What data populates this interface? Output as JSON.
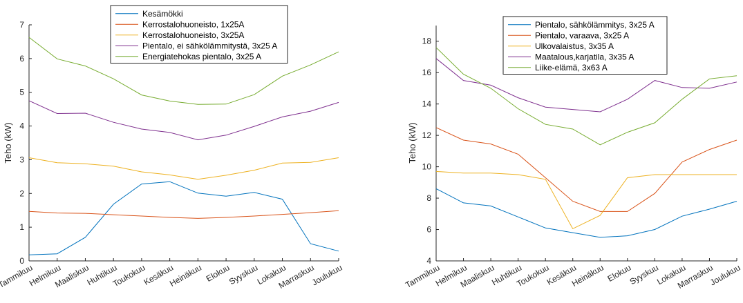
{
  "chart_data": [
    {
      "type": "line",
      "ylabel": "Teho (kW)",
      "xlabel": "",
      "title": "",
      "ylim": [
        0,
        7
      ],
      "yticks": [
        0,
        1,
        2,
        3,
        4,
        5,
        6,
        7
      ],
      "legend_position": "top-center",
      "categories": [
        "Tammikuu",
        "Helmikuu",
        "Maaliskuu",
        "Huhtikuu",
        "Toukokuu",
        "Kesäkuu",
        "Heinäkuu",
        "Elokuu",
        "Syyskuu",
        "Lokakuu",
        "Marraskuu",
        "Joulukuu"
      ],
      "series": [
        {
          "name": "Kesämökki",
          "color": "#0072BD",
          "values": [
            0.18,
            0.21,
            0.7,
            1.68,
            2.28,
            2.35,
            2.01,
            1.92,
            2.03,
            1.83,
            0.51,
            0.29
          ]
        },
        {
          "name": "Kerrostalohuoneisto, 1x25A",
          "color": "#D95319",
          "values": [
            1.47,
            1.42,
            1.41,
            1.37,
            1.33,
            1.29,
            1.26,
            1.29,
            1.33,
            1.38,
            1.43,
            1.49
          ]
        },
        {
          "name": "Kerrostalohuoneisto, 3x25A",
          "color": "#EDB120",
          "values": [
            3.06,
            2.91,
            2.88,
            2.81,
            2.64,
            2.55,
            2.42,
            2.54,
            2.69,
            2.9,
            2.92,
            3.06
          ]
        },
        {
          "name": "Pientalo, ei sähkölämmitystä, 3x25 A",
          "color": "#7E2F8E",
          "values": [
            4.75,
            4.37,
            4.38,
            4.11,
            3.91,
            3.81,
            3.59,
            3.73,
            3.99,
            4.27,
            4.44,
            4.7
          ]
        },
        {
          "name": "Energiatehokas pientalo, 3x25 A",
          "color": "#77AC30",
          "values": [
            6.63,
            5.99,
            5.78,
            5.4,
            4.92,
            4.74,
            4.64,
            4.65,
            4.93,
            5.48,
            5.81,
            6.2
          ]
        }
      ]
    },
    {
      "type": "line",
      "ylabel": "Teho (kW)",
      "xlabel": "",
      "title": "",
      "ylim": [
        4,
        19
      ],
      "yticks": [
        4,
        6,
        8,
        10,
        12,
        14,
        16,
        18
      ],
      "legend_position": "top-center",
      "categories": [
        "Tammikuu",
        "Helmikuu",
        "Maaliskuu",
        "Huhtikuu",
        "Toukokuu",
        "Kesäkuu",
        "Heinäkuu",
        "Elokuu",
        "Syyskuu",
        "Lokakuu",
        "Marraskuu",
        "Joulukuu"
      ],
      "series": [
        {
          "name": "Pientalo, sähkölämmitys, 3x25 A",
          "color": "#0072BD",
          "values": [
            8.6,
            7.7,
            7.5,
            6.8,
            6.1,
            5.8,
            5.5,
            5.6,
            6.0,
            6.85,
            7.3,
            7.8
          ]
        },
        {
          "name": "Pientalo, varaava, 3x25 A",
          "color": "#D95319",
          "values": [
            12.5,
            11.7,
            11.45,
            10.8,
            9.3,
            7.8,
            7.15,
            7.15,
            8.3,
            10.3,
            11.1,
            11.7
          ]
        },
        {
          "name": "Ulkovalaistus, 3x35 A",
          "color": "#EDB120",
          "values": [
            9.7,
            9.6,
            9.6,
            9.5,
            9.2,
            6.05,
            6.9,
            9.3,
            9.5,
            9.5,
            9.5,
            9.5
          ]
        },
        {
          "name": "Maatalous,karjatila, 3x35 A",
          "color": "#7E2F8E",
          "values": [
            16.9,
            15.5,
            15.2,
            14.4,
            13.8,
            13.65,
            13.5,
            14.3,
            15.5,
            15.05,
            15.0,
            15.4
          ]
        },
        {
          "name": "Liike-elämä, 3x63 A",
          "color": "#77AC30",
          "values": [
            17.6,
            15.9,
            15.0,
            13.7,
            12.7,
            12.4,
            11.4,
            12.2,
            12.8,
            14.3,
            15.6,
            15.8
          ]
        }
      ]
    }
  ]
}
